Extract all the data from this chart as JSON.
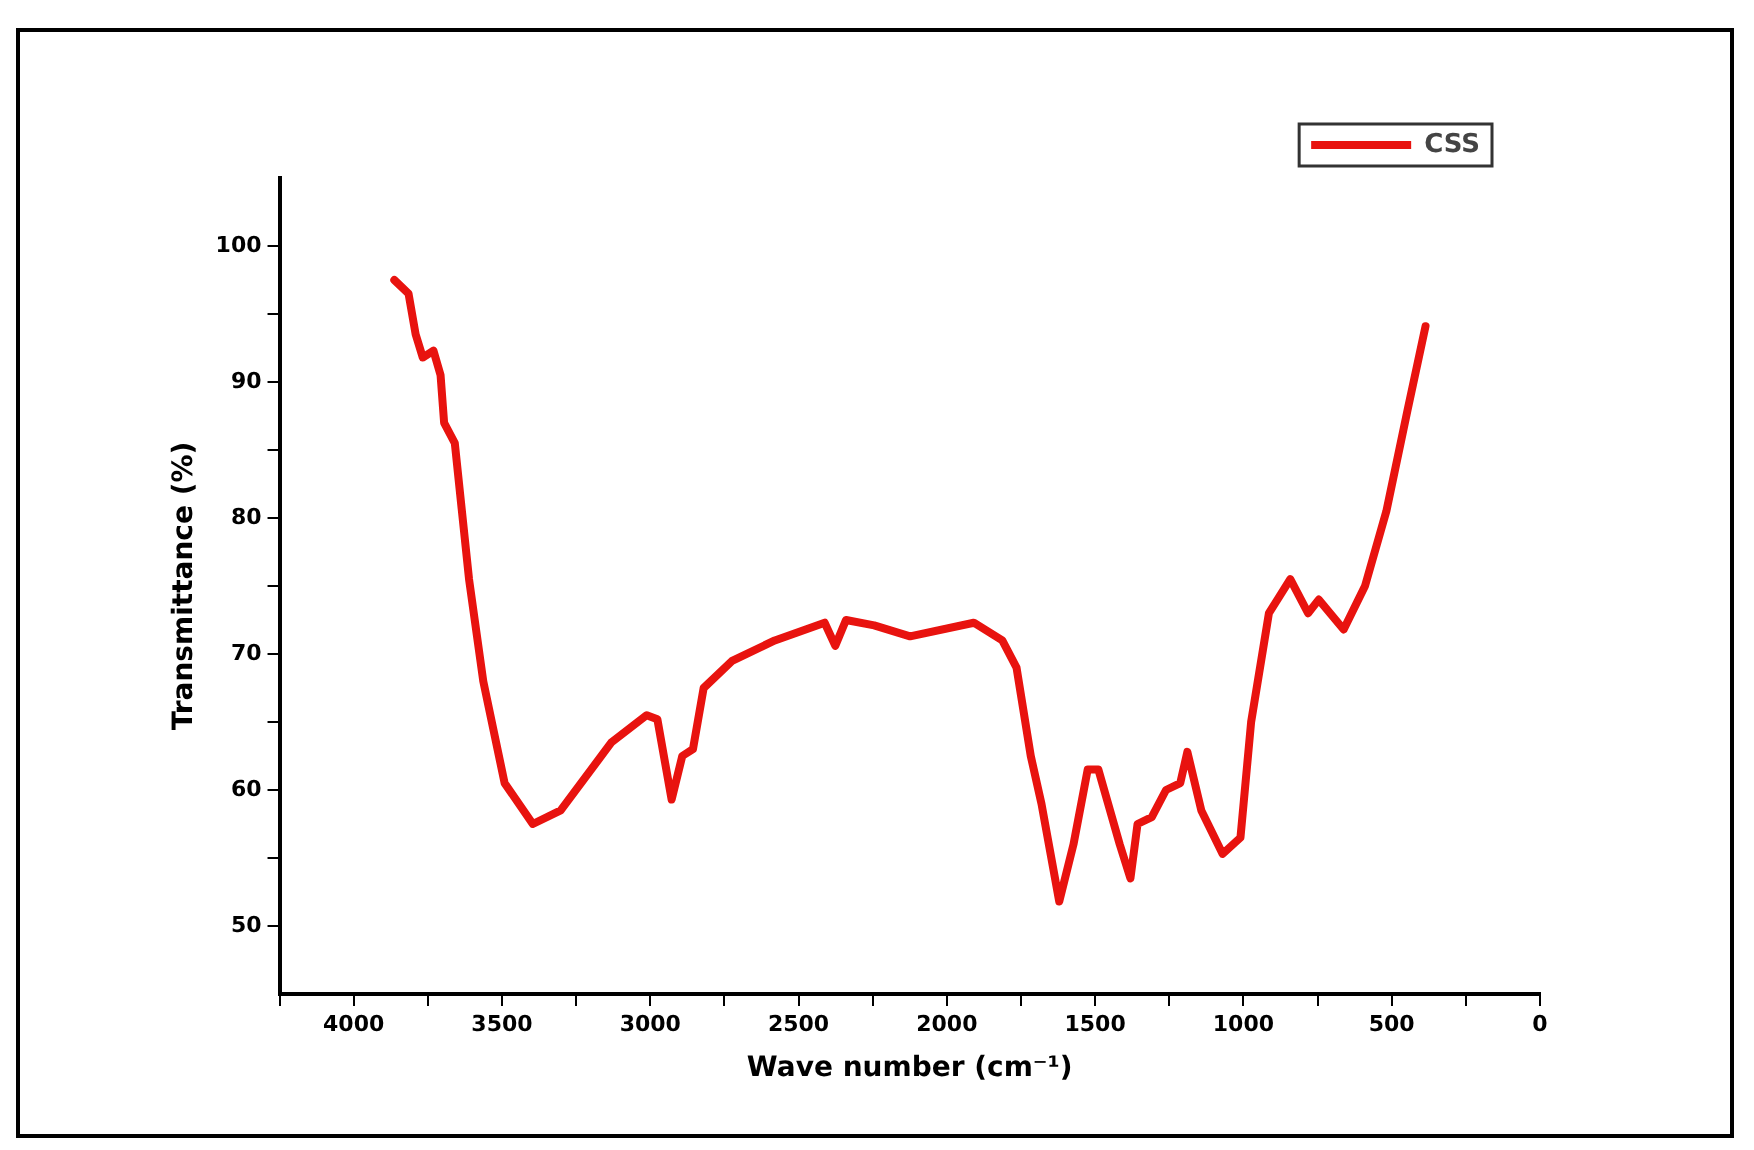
{
  "chart_data": {
    "type": "line",
    "xlabel": "Wave number (cm⁻¹)",
    "ylabel": "Transmittance (%)",
    "xlim": [
      4250,
      0
    ],
    "ylim": [
      45,
      105
    ],
    "xticks": [
      {
        "value": 4250,
        "label": null
      },
      4000,
      {
        "value": 3750,
        "label": null
      },
      3500,
      {
        "value": 3250,
        "label": null
      },
      3000,
      {
        "value": 2750,
        "label": null
      },
      2500,
      {
        "value": 2250,
        "label": null
      },
      2000,
      {
        "value": 1750,
        "label": null
      },
      1500,
      {
        "value": 1250,
        "label": null
      },
      1000,
      {
        "value": 750,
        "label": null
      },
      500,
      {
        "value": 250,
        "label": null
      },
      0
    ],
    "yticks": [
      50,
      {
        "value": 55,
        "label": null
      },
      60,
      {
        "value": 65,
        "label": null
      },
      70,
      {
        "value": 75,
        "label": null
      },
      80,
      {
        "value": 85,
        "label": null
      },
      90,
      {
        "value": 95,
        "label": null
      },
      100
    ],
    "grid": false,
    "legend": "top right",
    "marker": "none",
    "line_style": "solid",
    "series": [
      {
        "name": "CSS",
        "color": "#e8130f",
        "x": [
          3863,
          3815,
          3791,
          3767,
          3731,
          3707,
          3695,
          3659,
          3611,
          3563,
          3491,
          3396,
          3302,
          3131,
          3012,
          2976,
          2928,
          2892,
          2856,
          2820,
          2724,
          2580,
          2412,
          2376,
          2340,
          2245,
          2124,
          1909,
          1813,
          1765,
          1717,
          1681,
          1621,
          1573,
          1525,
          1489,
          1417,
          1381,
          1357,
          1309,
          1261,
          1213,
          1189,
          1142,
          1070,
          1010,
          974,
          914,
          842,
          782,
          746,
          662,
          590,
          518,
          446,
          386
        ],
        "values": [
          97.5,
          96.5,
          93.5,
          91.8,
          92.3,
          90.5,
          87,
          85.5,
          75.5,
          68,
          60.5,
          57.5,
          58.5,
          63.5,
          65.5,
          65.2,
          59.3,
          62.5,
          63,
          67.5,
          69.5,
          71,
          72.3,
          70.6,
          72.5,
          72.1,
          71.3,
          72.3,
          71,
          69,
          62.5,
          59,
          51.8,
          56,
          61.5,
          61.5,
          56,
          53.5,
          57.5,
          58,
          60,
          60.5,
          62.8,
          58.5,
          55.3,
          56.5,
          65,
          73,
          75.5,
          73,
          74,
          71.8,
          75,
          80.5,
          88,
          94.1
        ]
      }
    ]
  }
}
